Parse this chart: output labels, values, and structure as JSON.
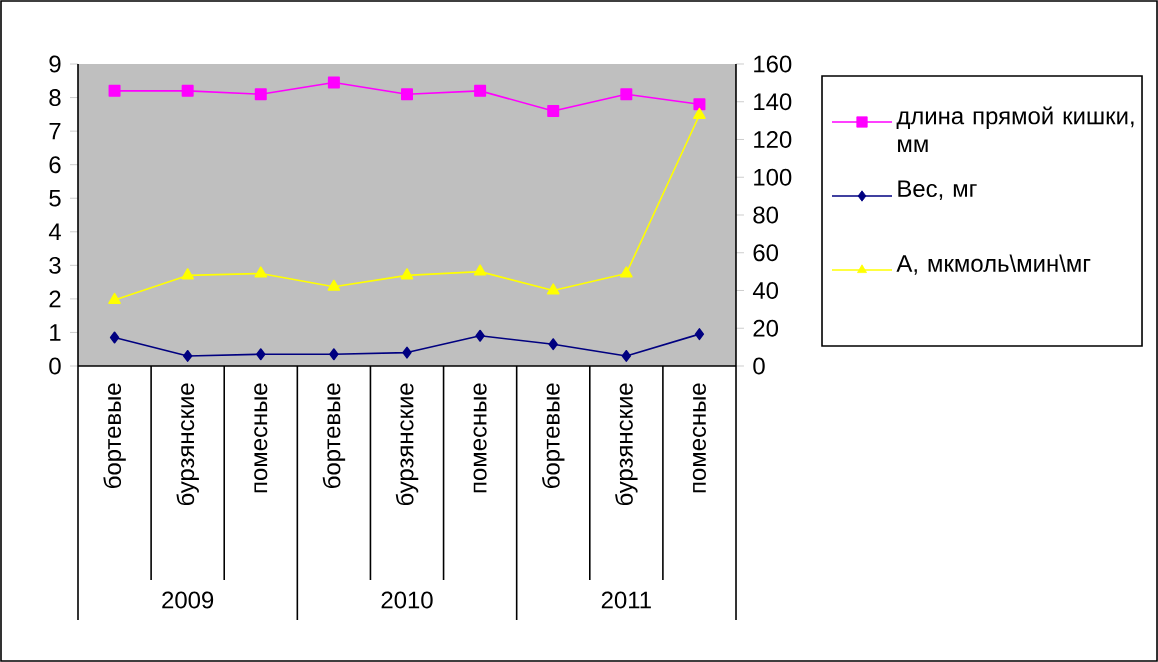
{
  "chart_data": {
    "type": "line",
    "categories": [
      "бортевые",
      "бурзянские",
      "помесные",
      "бортевые",
      "бурзянские",
      "помесные",
      "бортевые",
      "бурзянские",
      "помесные"
    ],
    "series": [
      {
        "name": "длина прямой кишки, мм",
        "color": "#ff00ff",
        "marker": "square",
        "values": [
          8.2,
          8.2,
          8.1,
          8.45,
          8.1,
          8.2,
          7.6,
          8.1,
          7.8
        ]
      },
      {
        "name": "Вес, мг",
        "color": "#000080",
        "marker": "diamond",
        "values": [
          0.85,
          0.3,
          0.35,
          0.35,
          0.4,
          0.9,
          0.65,
          0.3,
          0.95
        ]
      },
      {
        "name": "А, мкмоль\\мин\\мг",
        "color": "#ffff00",
        "marker": "triangle",
        "axis": "y2",
        "values": [
          35,
          48,
          49,
          42,
          48,
          50,
          40,
          49,
          133
        ]
      }
    ],
    "annotations": [
      "2009",
      "2010",
      "2011"
    ],
    "ylim": [
      0,
      9
    ],
    "yticks": [
      0,
      1,
      2,
      3,
      4,
      5,
      6,
      7,
      8,
      9
    ],
    "y2lim": [
      0,
      160
    ],
    "y2ticks": [
      0,
      20,
      40,
      60,
      80,
      100,
      120,
      140,
      160
    ],
    "grid": false,
    "legend": "right"
  }
}
